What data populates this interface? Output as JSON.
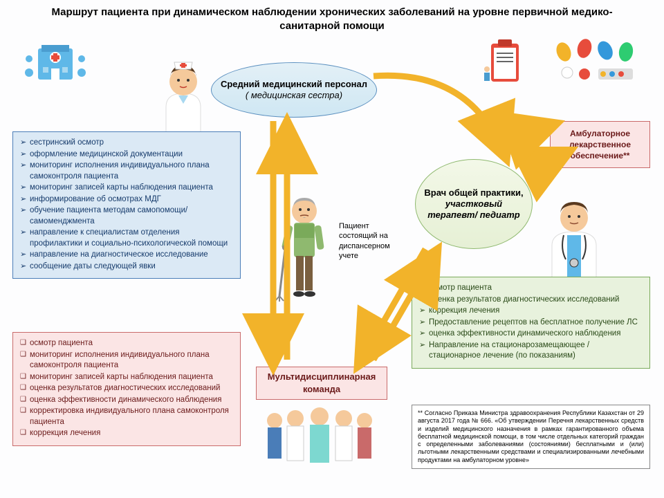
{
  "title": "Маршрут пациента при динамическом наблюдении хронических заболеваний на уровне первичной медико-санитарной помощи",
  "nodes": {
    "nurse": {
      "line1": "Средний медицинский персонал",
      "line2": "( медицинская сестра)"
    },
    "doctor": {
      "line1": "Врач общей практики,",
      "line2": "участковый терапевт/ педиатр"
    },
    "team": "Мультидисциплинарная команда",
    "amb": "Амбулаторное лекарственное обеспечение**"
  },
  "patient_label": "Пациент состоящий на диспансерном учете",
  "lists": {
    "nurse_tasks": [
      "сестринский осмотр",
      "оформление медицинской документации",
      "мониторинг исполнения индивидуального плана самоконтроля пациента",
      "мониторинг записей карты наблюдения пациента",
      "информирование об осмотрах МДГ",
      "обучение пациента методам самопомощи/самоменджмента",
      "направление к специалистам отделения профилактики и социально-психологической помощи",
      "направление на диагностическое исследование",
      "сообщение даты следующей явки"
    ],
    "doctor_tasks": [
      "осмотр пациента",
      "оценка результатов диагностических исследований",
      "коррекция лечения",
      "Предоставление рецептов на бесплатное получение ЛС",
      "оценка эффективности динамического наблюдения",
      "Направление на стационарозамещающее / стационарное лечение (по показаниям)"
    ],
    "team_tasks": [
      "осмотр пациента",
      "мониторинг исполнения индивидуального плана самоконтроля пациента",
      "мониторинг записей карты наблюдения пациента",
      "оценка результатов диагностических исследований",
      "оценка эффективности динамического наблюдения",
      "корректировка индивидуального плана самоконтроля пациента",
      "коррекция лечения"
    ]
  },
  "footnote": "** Согласно Приказа Министра здравоохранения Республики Казахстан от 29 августа 2017 года № 666. «Об утверждении Перечня лекарственных средств и изделий медицинского назначения в рамках гарантированного объема бесплатной медицинской помощи, в том числе отдельных категорий граждан с определенными заболеваниями (состояниями) бесплатными и (или) льготными лекарственными средствами и специализированными лечебными продуктами на амбулаторном уровне»",
  "colors": {
    "arrow": "#f2b32a",
    "blue_border": "#4a7db8",
    "green_border": "#7aaa5a",
    "pink_border": "#c96a6a"
  }
}
